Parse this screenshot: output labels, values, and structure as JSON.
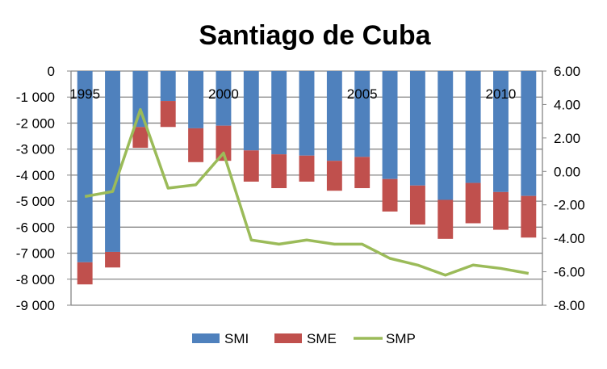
{
  "chart_data": {
    "type": "bar",
    "title": "Santiago de Cuba",
    "categories": [
      "1995",
      "1996",
      "1997",
      "1998",
      "1999",
      "2000",
      "2001",
      "2002",
      "2003",
      "2004",
      "2005",
      "2006",
      "2007",
      "2008",
      "2009",
      "2010",
      "2011"
    ],
    "x_tick_labels": [
      "1995",
      "2000",
      "2005",
      "2010"
    ],
    "series": [
      {
        "name": "SMI",
        "type": "stacked-bar",
        "axis": "left",
        "color": "#4F81BD",
        "values": [
          -7350,
          -6950,
          -2150,
          -1150,
          -2200,
          -2100,
          -3050,
          -3200,
          -3250,
          -3450,
          -3300,
          -4150,
          -4400,
          -4950,
          -4300,
          -4650,
          -4800
        ]
      },
      {
        "name": "SME",
        "type": "stacked-bar",
        "axis": "left",
        "color": "#C0504D",
        "values": [
          -850,
          -600,
          -800,
          -1000,
          -1300,
          -1350,
          -1200,
          -1300,
          -1000,
          -1150,
          -1200,
          -1250,
          -1500,
          -1500,
          -1550,
          -1450,
          -1600
        ]
      },
      {
        "name": "SMP",
        "type": "line",
        "axis": "right",
        "color": "#9BBB59",
        "values": [
          -1.5,
          -1.2,
          3.7,
          -1.0,
          -0.8,
          1.1,
          -4.1,
          -4.35,
          -4.1,
          -4.35,
          -4.35,
          -5.2,
          -5.6,
          -6.2,
          -5.6,
          -5.8,
          -6.1
        ]
      }
    ],
    "y_left": {
      "range": [
        -9000,
        0
      ],
      "ticks": [
        "0",
        "-1 000",
        "-2 000",
        "-3 000",
        "-4 000",
        "-5 000",
        "-6 000",
        "-7 000",
        "-8 000",
        "-9 000"
      ]
    },
    "y_right": {
      "range": [
        -8,
        6
      ],
      "ticks": [
        "6.00",
        "4.00",
        "2.00",
        "0.00",
        "-2.00",
        "-4.00",
        "-6.00",
        "-8.00"
      ]
    },
    "grid": true,
    "legend": "bottom"
  }
}
